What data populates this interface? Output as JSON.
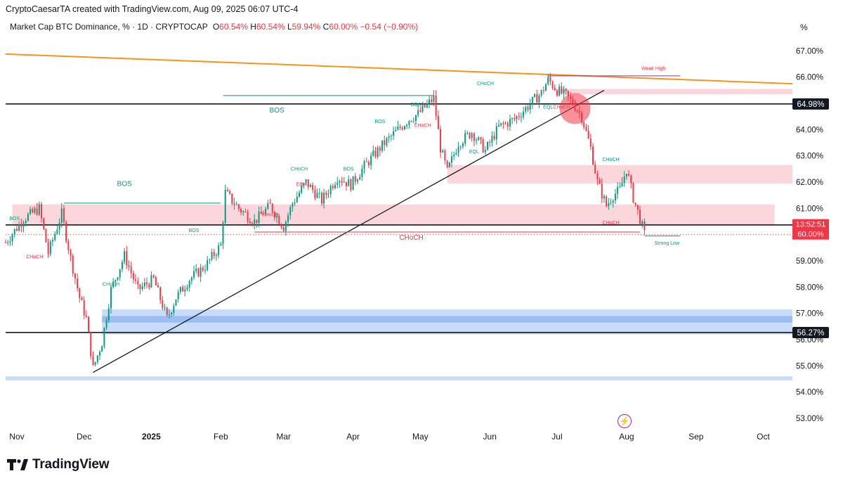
{
  "header": {
    "creator": "CryptoCaesarTA created with TradingView.com, Aug 09, 2025 06:07 UTC-4",
    "symbol": "Market Cap BTC Dominance, %",
    "interval": "1D",
    "exchange": "CRYPTOCAP",
    "o_label": "O",
    "o_value": "60.54%",
    "h_label": "H",
    "h_value": "60.54%",
    "l_label": "L",
    "l_value": "59.94%",
    "c_label": "C",
    "c_value": "60.00%",
    "change": "−0.54 (−0.90%)",
    "axis_unit": "%"
  },
  "footer": {
    "brand": "TradingView"
  },
  "colors": {
    "up": "#089981",
    "down": "#f23645",
    "trendline": "#f7931a",
    "bull_zone": "#bbd3f5",
    "bear_zone": "#f9c9cf"
  },
  "icons": [
    "tradingview-logo-icon",
    "lightning-icon"
  ],
  "chart_data": {
    "type": "candlestick",
    "title": "Market Cap BTC Dominance, % · 1D · CRYPTOCAP",
    "x_axis": {
      "labels": [
        "Nov",
        "Dec",
        "2025",
        "Feb",
        "Mar",
        "Apr",
        "May",
        "Jun",
        "Jul",
        "Aug",
        "Sep",
        "Oct"
      ],
      "bold": [
        "2025"
      ],
      "range": [
        "2024-10-28",
        "2025-10-14"
      ]
    },
    "y_axis": {
      "ticks": [
        "53.00%",
        "54.00%",
        "55.00%",
        "56.00%",
        "57.00%",
        "58.00%",
        "59.00%",
        "60.00%",
        "61.00%",
        "62.00%",
        "63.00%",
        "64.00%",
        "65.00%",
        "66.00%",
        "67.00%"
      ],
      "range": [
        52.6,
        67.6
      ],
      "side": "right"
    },
    "path": [
      [
        "2024-10-28",
        59.7
      ],
      [
        "2024-11-05",
        60.6
      ],
      [
        "2024-11-12",
        61.0
      ],
      [
        "2024-11-16",
        59.3
      ],
      [
        "2024-11-22",
        60.8
      ],
      [
        "2024-11-26",
        59.1
      ],
      [
        "2024-11-30",
        57.6
      ],
      [
        "2024-12-03",
        56.8
      ],
      [
        "2024-12-06",
        54.9
      ],
      [
        "2024-12-10",
        55.9
      ],
      [
        "2024-12-14",
        57.9
      ],
      [
        "2024-12-20",
        59.2
      ],
      [
        "2024-12-26",
        57.9
      ],
      [
        "2025-01-02",
        58.3
      ],
      [
        "2025-01-08",
        56.8
      ],
      [
        "2025-01-12",
        57.6
      ],
      [
        "2025-01-18",
        58.3
      ],
      [
        "2025-01-25",
        58.8
      ],
      [
        "2025-02-01",
        59.6
      ],
      [
        "2025-02-03",
        61.6
      ],
      [
        "2025-02-09",
        61.0
      ],
      [
        "2025-02-16",
        60.5
      ],
      [
        "2025-02-23",
        61.1
      ],
      [
        "2025-03-01",
        60.3
      ],
      [
        "2025-03-05",
        61.2
      ],
      [
        "2025-03-11",
        62.0
      ],
      [
        "2025-03-18",
        61.3
      ],
      [
        "2025-03-25",
        62.2
      ],
      [
        "2025-03-31",
        61.9
      ],
      [
        "2025-04-06",
        62.6
      ],
      [
        "2025-04-14",
        63.4
      ],
      [
        "2025-04-21",
        64.0
      ],
      [
        "2025-04-26",
        64.4
      ],
      [
        "2025-04-30",
        64.6
      ],
      [
        "2025-05-07",
        65.2
      ],
      [
        "2025-05-10",
        63.3
      ],
      [
        "2025-05-13",
        62.4
      ],
      [
        "2025-05-18",
        63.5
      ],
      [
        "2025-05-24",
        63.9
      ],
      [
        "2025-05-30",
        63.2
      ],
      [
        "2025-06-05",
        64.1
      ],
      [
        "2025-06-12",
        64.4
      ],
      [
        "2025-06-18",
        64.9
      ],
      [
        "2025-06-24",
        65.4
      ],
      [
        "2025-06-27",
        65.9
      ],
      [
        "2025-07-01",
        65.5
      ],
      [
        "2025-07-05",
        65.3
      ],
      [
        "2025-07-09",
        64.9
      ],
      [
        "2025-07-12",
        64.5
      ],
      [
        "2025-07-16",
        63.3
      ],
      [
        "2025-07-19",
        62.0
      ],
      [
        "2025-07-23",
        61.1
      ],
      [
        "2025-07-26",
        61.5
      ],
      [
        "2025-07-29",
        61.7
      ],
      [
        "2025-08-01",
        62.5
      ],
      [
        "2025-08-04",
        61.4
      ],
      [
        "2025-08-07",
        60.6
      ],
      [
        "2025-08-09",
        60.0
      ]
    ],
    "horizontal_levels": [
      {
        "value": 64.98,
        "label": "64.98%",
        "color": "#131722"
      },
      {
        "value": 60.37,
        "label": "60.37%",
        "color": "#131722"
      },
      {
        "value": 56.27,
        "label": "56.27%",
        "color": "#131722"
      }
    ],
    "price_labels": [
      {
        "value": 60.0,
        "label": "13:52:51",
        "color": "#f23645"
      },
      {
        "value": 60.0,
        "label": "60.00%",
        "color": "#f23645"
      }
    ],
    "trendlines": [
      {
        "name": "descending resistance",
        "from": [
          "2024-10-28",
          66.88
        ],
        "to": [
          "2025-10-14",
          65.75
        ],
        "color": "#f7931a"
      },
      {
        "name": "ascending support",
        "from": [
          "2024-12-06",
          54.75
        ],
        "to": [
          "2025-07-22",
          65.5
        ],
        "color": "#131722"
      }
    ],
    "zones": [
      {
        "kind": "supply",
        "from": "2024-10-31",
        "to": "2025-10-06",
        "low": 60.37,
        "high": 61.15
      },
      {
        "kind": "supply",
        "from": "2025-05-13",
        "to": "2025-10-14",
        "low": 61.95,
        "high": 62.65
      },
      {
        "kind": "supply",
        "from": "2025-07-01",
        "to": "2025-10-14",
        "low": 65.35,
        "high": 65.55
      },
      {
        "kind": "demand",
        "from": "2024-12-10",
        "to": "2025-10-14",
        "low": 56.2,
        "high": 57.15
      },
      {
        "kind": "demand",
        "from": "2024-10-28",
        "to": "2025-10-14",
        "low": 54.45,
        "high": 54.6
      }
    ],
    "annotations": [
      {
        "text": "BOS",
        "x": "2024-11-01",
        "y": 60.55,
        "color": "#089981"
      },
      {
        "text": "CHoCH",
        "x": "2024-11-10",
        "y": 59.1,
        "color": "#f23645"
      },
      {
        "text": "BOS",
        "x": "2024-12-20",
        "y": 61.85,
        "color": "#089981"
      },
      {
        "text": "CHoCH",
        "x": "2024-12-14",
        "y": 58.05,
        "color": "#089981"
      },
      {
        "text": "BOS",
        "x": "2025-01-20",
        "y": 60.1,
        "color": "#089981"
      },
      {
        "text": "BOS",
        "x": "2025-02-26",
        "y": 64.65,
        "color": "#089981"
      },
      {
        "text": "CHoCH",
        "x": "2025-02-23",
        "y": 60.7,
        "color": "#f23645"
      },
      {
        "text": "CHoCH",
        "x": "2025-03-08",
        "y": 62.45,
        "color": "#089981"
      },
      {
        "text": "EQH",
        "x": "2025-03-09",
        "y": 61.85,
        "color": "#f23645"
      },
      {
        "text": "BOS",
        "x": "2025-03-30",
        "y": 62.45,
        "color": "#089981"
      },
      {
        "text": "BOS",
        "x": "2025-04-13",
        "y": 64.25,
        "color": "#089981"
      },
      {
        "text": "BOS",
        "x": "2025-04-29",
        "y": 64.9,
        "color": "#089981"
      },
      {
        "text": "CHoCH",
        "x": "2025-05-02",
        "y": 64.1,
        "color": "#f23645"
      },
      {
        "text": "EQL",
        "x": "2025-05-25",
        "y": 63.1,
        "color": "#089981"
      },
      {
        "text": "CHoCH",
        "x": "2025-05-30",
        "y": 65.7,
        "color": "#089981"
      },
      {
        "text": "EQL",
        "x": "2025-06-27",
        "y": 64.8,
        "color": "#089981"
      },
      {
        "text": "CHoCH",
        "x": "2025-07-03",
        "y": 64.8,
        "color": "#f23645"
      },
      {
        "text": "CHoCH",
        "x": "2025-07-25",
        "y": 62.8,
        "color": "#089981"
      },
      {
        "text": "CHoCH",
        "x": "2025-04-27",
        "y": 59.8,
        "color": "#f23645"
      },
      {
        "text": "CHoCH",
        "x": "2025-07-25",
        "y": 60.4,
        "color": "#f23645"
      },
      {
        "text": "Weak High",
        "x": "2025-08-13",
        "y": 66.28,
        "color": "#f23645"
      },
      {
        "text": "Strong Low",
        "x": "2025-08-19",
        "y": 59.62,
        "color": "#089981"
      }
    ],
    "structure_lines": [
      {
        "label_ref": "BOS 2024-12",
        "from": [
          "2024-11-23",
          61.2
        ],
        "to": [
          "2025-02-01",
          61.2
        ],
        "dashed": false,
        "color": "#089981"
      },
      {
        "label_ref": "BOS 2025-02",
        "from": [
          "2025-02-02",
          65.3
        ],
        "to": [
          "2025-05-07",
          65.3
        ],
        "dashed": false,
        "color": "#089981"
      },
      {
        "label_ref": "CHoCH low",
        "from": [
          "2025-02-16",
          60.1
        ],
        "to": [
          "2025-08-07",
          60.1
        ],
        "dashed": false,
        "color": "#f23645"
      },
      {
        "label_ref": "Weak High",
        "from": [
          "2025-06-27",
          66.05
        ],
        "to": [
          "2025-08-25",
          66.05
        ],
        "dashed": false,
        "color": "#9c27b0"
      },
      {
        "label_ref": "Strong Low",
        "from": [
          "2025-08-09",
          59.95
        ],
        "to": [
          "2025-08-25",
          59.95
        ],
        "dashed": false,
        "color": "#089981"
      }
    ],
    "highlight_circle": {
      "x": "2025-07-09",
      "y": 64.8,
      "color": "#f23645"
    },
    "legend": "none",
    "grid": false
  }
}
